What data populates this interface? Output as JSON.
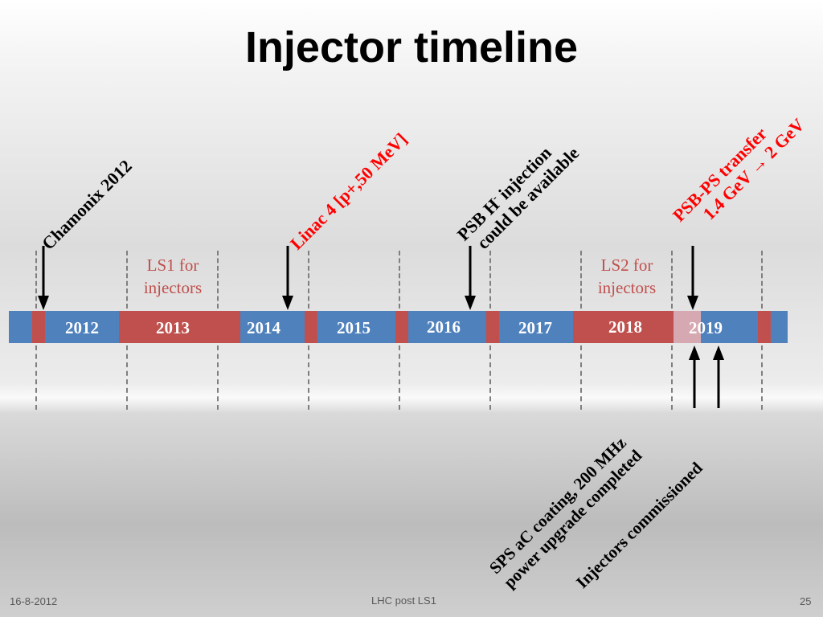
{
  "title": "Injector timeline",
  "years": [
    "2012",
    "2013",
    "2014",
    "2015",
    "2016",
    "2017",
    "2018",
    "2019"
  ],
  "shutdowns": [
    {
      "label_line1": "LS1 for",
      "label_line2": "injectors"
    },
    {
      "label_line1": "LS2 for",
      "label_line2": "injectors"
    }
  ],
  "annotations": {
    "chamonix": {
      "text": "Chamonix 2012"
    },
    "linac4": {
      "text": "Linac 4 [p+,50 MeV]"
    },
    "psb_h": {
      "line1_a": "PSB H",
      "line1_sup": "-",
      "line1_b": " injection",
      "line2": "could be available"
    },
    "psb_ps": {
      "line1": "PSB-PS transfer",
      "line2": "1.4 GeV → 2 GeV"
    },
    "sps": {
      "line1": "SPS aC coating, 200 MHz",
      "line2": "power upgrade completed"
    },
    "injectors": {
      "text": "Injectors commissioned"
    }
  },
  "colors": {
    "run": "#4f81bd",
    "shutdown": "#c0504d",
    "commissioning": "#d6a9b2",
    "highlight_text": "#ff0000"
  },
  "footer": {
    "date": "16-8-2012",
    "center": "LHC post LS1",
    "page": "25"
  }
}
